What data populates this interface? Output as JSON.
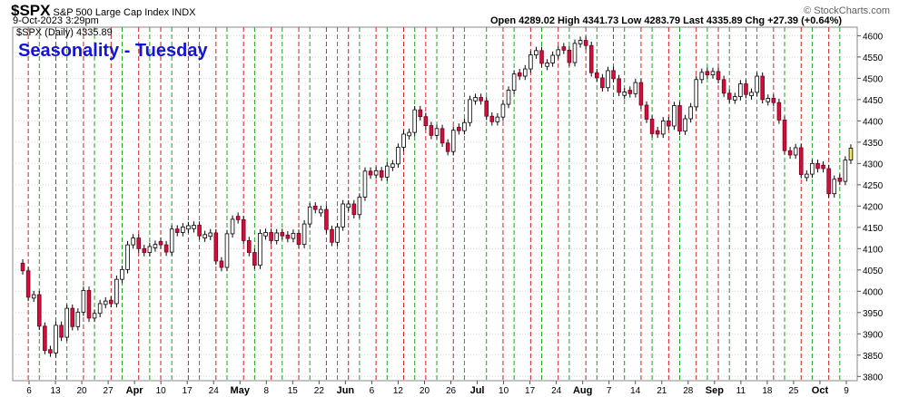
{
  "header": {
    "symbol": "$SPX",
    "name": "S&P 500 Large Cap Index INDX",
    "datetime": "9-Oct-2023 3:29pm",
    "ohlc": "Open 4289.02  High 4341.73  Low 4283.79  Last 4335.89  Chg +27.39 (+0.64%)",
    "source": "© StockCharts.com",
    "legend": "$SPX (Daily) 4335.89"
  },
  "chart_data": {
    "type": "candlestick",
    "title": "Seasonality - Tuesday",
    "ylim": [
      3790,
      4620
    ],
    "y_ticks": [
      3800,
      3850,
      3900,
      3950,
      4000,
      4050,
      4100,
      4150,
      4200,
      4250,
      4300,
      4350,
      4400,
      4450,
      4500,
      4550,
      4600
    ],
    "x_labels": [
      "6",
      "13",
      "20",
      "27",
      "Apr",
      "10",
      "17",
      "24",
      "May",
      "8",
      "15",
      "22",
      "Jun",
      "6",
      "12",
      "20",
      "26",
      "Jul",
      "10",
      "17",
      "24",
      "Aug",
      "7",
      "14",
      "21",
      "28",
      "Sep",
      "11",
      "18",
      "25",
      "Oct",
      "9"
    ],
    "grid": true,
    "colors": {
      "up": "#ffffff",
      "down": "#d0103a",
      "last": "#f5e85a",
      "tuesday_line": "#d02020",
      "other_line": "#20a020"
    },
    "series": [
      {
        "label": "Mar 6",
        "close": 4048,
        "up": false
      },
      {
        "label": "Mar 7",
        "close": 3986,
        "up": false
      },
      {
        "label": "Mar 8",
        "close": 3992,
        "up": true
      },
      {
        "label": "Mar 9",
        "close": 3918,
        "up": false
      },
      {
        "label": "Mar 10",
        "close": 3861,
        "up": false
      },
      {
        "label": "Mar 13",
        "close": 3855,
        "up": false
      },
      {
        "label": "Mar 14",
        "close": 3920,
        "up": true
      },
      {
        "label": "Mar 15",
        "close": 3892,
        "up": false
      },
      {
        "label": "Mar 16",
        "close": 3960,
        "up": true
      },
      {
        "label": "Mar 17",
        "close": 3917,
        "up": false
      },
      {
        "label": "Mar 20",
        "close": 3951,
        "up": true
      },
      {
        "label": "Mar 21",
        "close": 4002,
        "up": true
      },
      {
        "label": "Mar 22",
        "close": 3937,
        "up": false
      },
      {
        "label": "Mar 23",
        "close": 3948,
        "up": true
      },
      {
        "label": "Mar 24",
        "close": 3971,
        "up": true
      },
      {
        "label": "Mar 27",
        "close": 3977,
        "up": true
      },
      {
        "label": "Mar 28",
        "close": 3971,
        "up": false
      },
      {
        "label": "Mar 29",
        "close": 4028,
        "up": true
      },
      {
        "label": "Mar 30",
        "close": 4051,
        "up": true
      },
      {
        "label": "Mar 31",
        "close": 4109,
        "up": true
      },
      {
        "label": "Apr 3",
        "close": 4125,
        "up": true
      },
      {
        "label": "Apr 4",
        "close": 4100,
        "up": false
      },
      {
        "label": "Apr 5",
        "close": 4091,
        "up": false
      },
      {
        "label": "Apr 6",
        "close": 4105,
        "up": true
      },
      {
        "label": "Apr 10",
        "close": 4110,
        "up": true
      },
      {
        "label": "Apr 11",
        "close": 4109,
        "up": false
      },
      {
        "label": "Apr 12",
        "close": 4092,
        "up": false
      },
      {
        "label": "Apr 13",
        "close": 4146,
        "up": true
      },
      {
        "label": "Apr 14",
        "close": 4138,
        "up": false
      },
      {
        "label": "Apr 17",
        "close": 4151,
        "up": true
      },
      {
        "label": "Apr 18",
        "close": 4154,
        "up": true
      },
      {
        "label": "Apr 19",
        "close": 4155,
        "up": true
      },
      {
        "label": "Apr 20",
        "close": 4130,
        "up": false
      },
      {
        "label": "Apr 21",
        "close": 4133,
        "up": true
      },
      {
        "label": "Apr 24",
        "close": 4137,
        "up": true
      },
      {
        "label": "Apr 25",
        "close": 4071,
        "up": false
      },
      {
        "label": "Apr 26",
        "close": 4056,
        "up": false
      },
      {
        "label": "Apr 27",
        "close": 4135,
        "up": true
      },
      {
        "label": "Apr 28",
        "close": 4169,
        "up": true
      },
      {
        "label": "May 1",
        "close": 4168,
        "up": false
      },
      {
        "label": "May 2",
        "close": 4119,
        "up": false
      },
      {
        "label": "May 3",
        "close": 4091,
        "up": false
      },
      {
        "label": "May 4",
        "close": 4061,
        "up": false
      },
      {
        "label": "May 5",
        "close": 4136,
        "up": true
      },
      {
        "label": "May 8",
        "close": 4138,
        "up": true
      },
      {
        "label": "May 9",
        "close": 4119,
        "up": false
      },
      {
        "label": "May 10",
        "close": 4137,
        "up": true
      },
      {
        "label": "May 11",
        "close": 4130,
        "up": false
      },
      {
        "label": "May 12",
        "close": 4124,
        "up": false
      },
      {
        "label": "May 15",
        "close": 4136,
        "up": true
      },
      {
        "label": "May 16",
        "close": 4110,
        "up": false
      },
      {
        "label": "May 17",
        "close": 4158,
        "up": true
      },
      {
        "label": "May 18",
        "close": 4198,
        "up": true
      },
      {
        "label": "May 19",
        "close": 4192,
        "up": false
      },
      {
        "label": "May 22",
        "close": 4192,
        "up": true
      },
      {
        "label": "May 23",
        "close": 4145,
        "up": false
      },
      {
        "label": "May 24",
        "close": 4115,
        "up": false
      },
      {
        "label": "May 25",
        "close": 4151,
        "up": true
      },
      {
        "label": "May 26",
        "close": 4205,
        "up": true
      },
      {
        "label": "May 30",
        "close": 4205,
        "up": true
      },
      {
        "label": "May 31",
        "close": 4180,
        "up": false
      },
      {
        "label": "Jun 1",
        "close": 4221,
        "up": true
      },
      {
        "label": "Jun 2",
        "close": 4282,
        "up": true
      },
      {
        "label": "Jun 5",
        "close": 4273,
        "up": false
      },
      {
        "label": "Jun 6",
        "close": 4283,
        "up": true
      },
      {
        "label": "Jun 7",
        "close": 4268,
        "up": false
      },
      {
        "label": "Jun 8",
        "close": 4294,
        "up": true
      },
      {
        "label": "Jun 9",
        "close": 4299,
        "up": true
      },
      {
        "label": "Jun 12",
        "close": 4338,
        "up": true
      },
      {
        "label": "Jun 13",
        "close": 4369,
        "up": true
      },
      {
        "label": "Jun 14",
        "close": 4373,
        "up": true
      },
      {
        "label": "Jun 15",
        "close": 4426,
        "up": true
      },
      {
        "label": "Jun 16",
        "close": 4410,
        "up": false
      },
      {
        "label": "Jun 20",
        "close": 4389,
        "up": false
      },
      {
        "label": "Jun 21",
        "close": 4366,
        "up": false
      },
      {
        "label": "Jun 22",
        "close": 4382,
        "up": true
      },
      {
        "label": "Jun 23",
        "close": 4348,
        "up": false
      },
      {
        "label": "Jun 26",
        "close": 4328,
        "up": false
      },
      {
        "label": "Jun 27",
        "close": 4378,
        "up": true
      },
      {
        "label": "Jun 28",
        "close": 4377,
        "up": false
      },
      {
        "label": "Jun 29",
        "close": 4396,
        "up": true
      },
      {
        "label": "Jun 30",
        "close": 4450,
        "up": true
      },
      {
        "label": "Jul 3",
        "close": 4455,
        "up": true
      },
      {
        "label": "Jul 5",
        "close": 4447,
        "up": false
      },
      {
        "label": "Jul 6",
        "close": 4411,
        "up": false
      },
      {
        "label": "Jul 7",
        "close": 4398,
        "up": false
      },
      {
        "label": "Jul 10",
        "close": 4409,
        "up": true
      },
      {
        "label": "Jul 11",
        "close": 4439,
        "up": true
      },
      {
        "label": "Jul 12",
        "close": 4472,
        "up": true
      },
      {
        "label": "Jul 13",
        "close": 4510,
        "up": true
      },
      {
        "label": "Jul 14",
        "close": 4505,
        "up": false
      },
      {
        "label": "Jul 17",
        "close": 4522,
        "up": true
      },
      {
        "label": "Jul 18",
        "close": 4555,
        "up": true
      },
      {
        "label": "Jul 19",
        "close": 4565,
        "up": true
      },
      {
        "label": "Jul 20",
        "close": 4535,
        "up": false
      },
      {
        "label": "Jul 21",
        "close": 4536,
        "up": true
      },
      {
        "label": "Jul 24",
        "close": 4554,
        "up": true
      },
      {
        "label": "Jul 25",
        "close": 4567,
        "up": true
      },
      {
        "label": "Jul 26",
        "close": 4566,
        "up": false
      },
      {
        "label": "Jul 27",
        "close": 4537,
        "up": false
      },
      {
        "label": "Jul 28",
        "close": 4582,
        "up": true
      },
      {
        "label": "Jul 31",
        "close": 4589,
        "up": true
      },
      {
        "label": "Aug 1",
        "close": 4577,
        "up": false
      },
      {
        "label": "Aug 2",
        "close": 4513,
        "up": false
      },
      {
        "label": "Aug 3",
        "close": 4501,
        "up": false
      },
      {
        "label": "Aug 4",
        "close": 4478,
        "up": false
      },
      {
        "label": "Aug 7",
        "close": 4518,
        "up": true
      },
      {
        "label": "Aug 8",
        "close": 4499,
        "up": false
      },
      {
        "label": "Aug 9",
        "close": 4467,
        "up": false
      },
      {
        "label": "Aug 10",
        "close": 4468,
        "up": true
      },
      {
        "label": "Aug 11",
        "close": 4464,
        "up": false
      },
      {
        "label": "Aug 14",
        "close": 4490,
        "up": true
      },
      {
        "label": "Aug 15",
        "close": 4437,
        "up": false
      },
      {
        "label": "Aug 16",
        "close": 4404,
        "up": false
      },
      {
        "label": "Aug 17",
        "close": 4370,
        "up": false
      },
      {
        "label": "Aug 18",
        "close": 4369,
        "up": false
      },
      {
        "label": "Aug 21",
        "close": 4400,
        "up": true
      },
      {
        "label": "Aug 22",
        "close": 4388,
        "up": false
      },
      {
        "label": "Aug 23",
        "close": 4436,
        "up": true
      },
      {
        "label": "Aug 24",
        "close": 4376,
        "up": false
      },
      {
        "label": "Aug 25",
        "close": 4405,
        "up": true
      },
      {
        "label": "Aug 28",
        "close": 4433,
        "up": true
      },
      {
        "label": "Aug 29",
        "close": 4497,
        "up": true
      },
      {
        "label": "Aug 30",
        "close": 4514,
        "up": true
      },
      {
        "label": "Aug 31",
        "close": 4508,
        "up": false
      },
      {
        "label": "Sep 1",
        "close": 4516,
        "up": true
      },
      {
        "label": "Sep 5",
        "close": 4497,
        "up": false
      },
      {
        "label": "Sep 6",
        "close": 4465,
        "up": false
      },
      {
        "label": "Sep 7",
        "close": 4451,
        "up": false
      },
      {
        "label": "Sep 8",
        "close": 4457,
        "up": true
      },
      {
        "label": "Sep 11",
        "close": 4487,
        "up": true
      },
      {
        "label": "Sep 12",
        "close": 4462,
        "up": false
      },
      {
        "label": "Sep 13",
        "close": 4467,
        "up": true
      },
      {
        "label": "Sep 14",
        "close": 4505,
        "up": true
      },
      {
        "label": "Sep 15",
        "close": 4450,
        "up": false
      },
      {
        "label": "Sep 18",
        "close": 4453,
        "up": true
      },
      {
        "label": "Sep 19",
        "close": 4443,
        "up": false
      },
      {
        "label": "Sep 20",
        "close": 4402,
        "up": false
      },
      {
        "label": "Sep 21",
        "close": 4330,
        "up": false
      },
      {
        "label": "Sep 22",
        "close": 4320,
        "up": false
      },
      {
        "label": "Sep 25",
        "close": 4337,
        "up": true
      },
      {
        "label": "Sep 26",
        "close": 4274,
        "up": false
      },
      {
        "label": "Sep 27",
        "close": 4275,
        "up": true
      },
      {
        "label": "Sep 28",
        "close": 4300,
        "up": true
      },
      {
        "label": "Sep 29",
        "close": 4288,
        "up": false
      },
      {
        "label": "Oct 2",
        "close": 4288,
        "up": false
      },
      {
        "label": "Oct 3",
        "close": 4229,
        "up": false
      },
      {
        "label": "Oct 4",
        "close": 4263,
        "up": true
      },
      {
        "label": "Oct 5",
        "close": 4258,
        "up": false
      },
      {
        "label": "Oct 6",
        "close": 4308,
        "up": true
      },
      {
        "label": "Oct 9",
        "close": 4336,
        "up": true
      }
    ]
  }
}
